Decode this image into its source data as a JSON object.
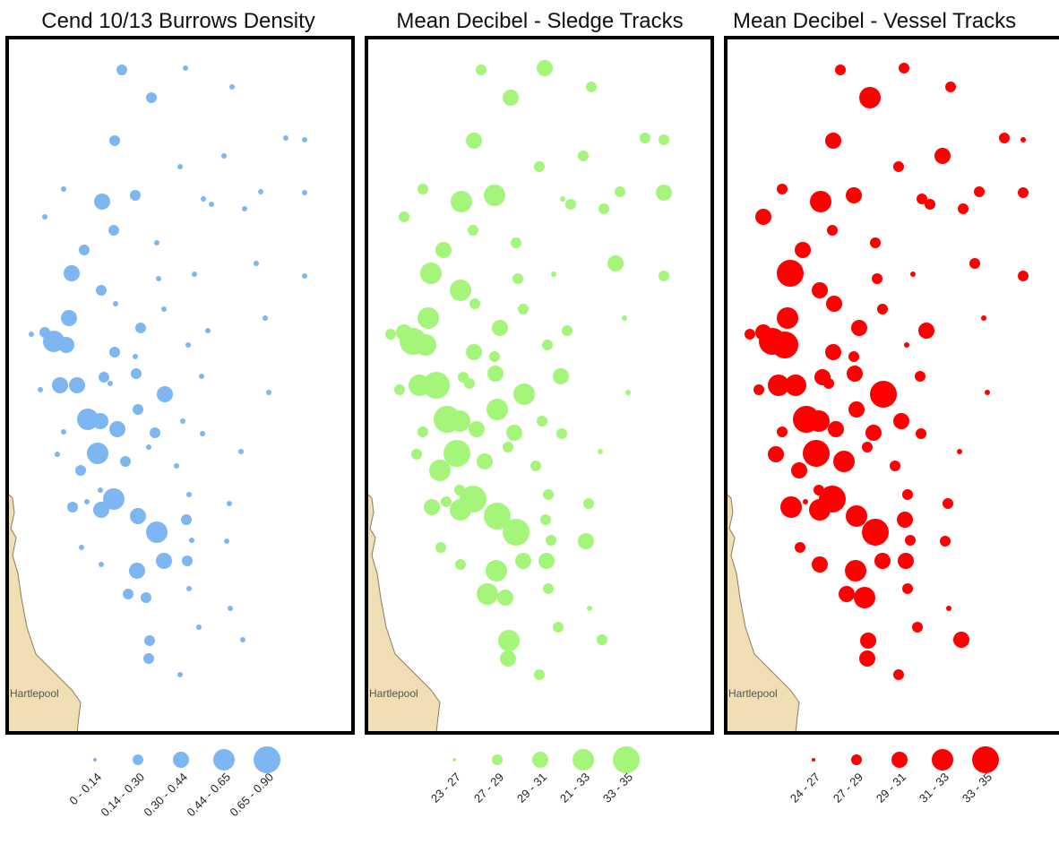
{
  "panels": [
    {
      "title": "Cend 10/13 Burrows Density",
      "color": "#7eb6f2",
      "legend": [
        "0 - 0.14",
        "0.14 - 0.30",
        "0.30 - 0.44",
        "0.44 - 0.65",
        "0.65 - 0.90"
      ],
      "place_label": "Hartlepool"
    },
    {
      "title": "Mean Decibel - Sledge Tracks",
      "color": "#a6f57b",
      "legend": [
        "23 - 27",
        "27 - 29",
        "29 - 31",
        "21 - 33",
        "33 - 35"
      ],
      "place_label": "Hartlepool"
    },
    {
      "title": "Mean Decibel - Vessel Tracks",
      "color": "#ff0000",
      "legend": [
        "24 - 27",
        "27 - 29",
        "29 - 31",
        "31 - 33",
        "33 - 35"
      ],
      "place_label": "Hartlepool"
    }
  ],
  "colors": {
    "land": "#f0dfb5",
    "frame": "#000000",
    "coast": "#8a7a60"
  }
}
